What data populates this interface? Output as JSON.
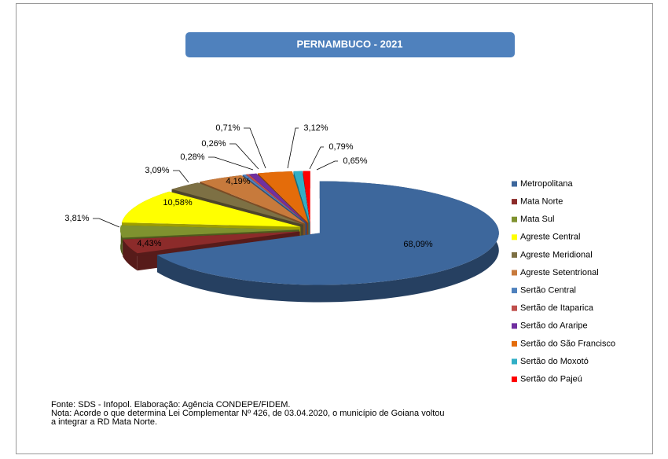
{
  "chart_data": {
    "type": "pie",
    "title": "PERNAMBUCO - 2021",
    "categories": [
      "Metropolitana",
      "Mata Norte",
      "Mata Sul",
      "Agreste Central",
      "Agreste Meridional",
      "Agreste Setentrional",
      "Sertão Central",
      "Sertão de Itaparica",
      "Sertão do Araripe",
      "Sertão do São Francisco",
      "Sertão do Moxotó",
      "Sertão do Pajeú"
    ],
    "values": [
      68.09,
      4.43,
      3.81,
      10.58,
      3.09,
      4.19,
      0.28,
      0.26,
      0.71,
      3.12,
      0.79,
      0.65
    ],
    "value_labels": [
      "68,09%",
      "4,43%",
      "3,81%",
      "10,58%",
      "3,09%",
      "4,19%",
      "0,28%",
      "0,26%",
      "0,71%",
      "3,12%",
      "0,79%",
      "0,65%"
    ],
    "colors": [
      "#3d679c",
      "#8c2b2a",
      "#7f922f",
      "#ffff00",
      "#7d7044",
      "#c77a3c",
      "#4f81bd",
      "#c0504d",
      "#7030a0",
      "#e46c0a",
      "#31afc6",
      "#ff0000"
    ],
    "legend": "right",
    "notes": [
      "Fonte: SDS - Infopol. Elaboração: Agência CONDEPE/FIDEM.",
      "Nota: Acorde o que determina Lei Complementar Nº 426, de 03.04.2020, o município de Goiana voltou",
      "a integrar a RD Mata Norte."
    ]
  }
}
